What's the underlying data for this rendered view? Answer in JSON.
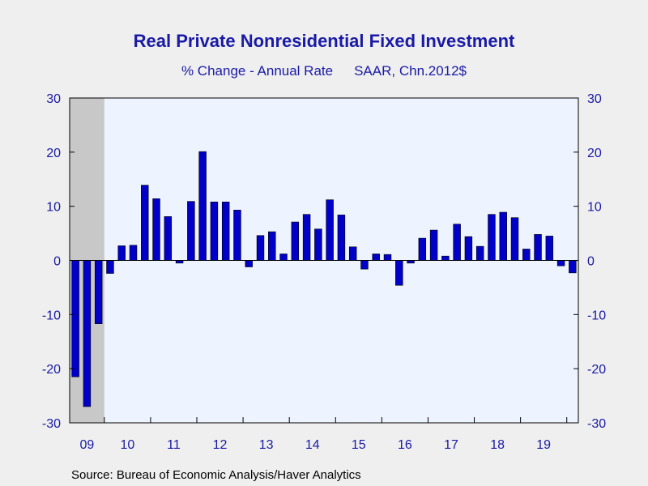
{
  "title": "Real Private Nonresidential Fixed Investment",
  "subtitle_left": "% Change - Annual Rate",
  "subtitle_right": "SAAR, Chn.2012$",
  "source": "Source:  Bureau of Economic Analysis/Haver Analytics",
  "colors": {
    "bar": "#0000c8",
    "bar_edge": "#000000",
    "plot_background": "#eef4ff",
    "recession_shade": "#c8c8c8",
    "axis_text": "#1a1aa6",
    "page_background": "#efefef"
  },
  "chart_data": {
    "type": "bar",
    "recession_shading": {
      "start_index": 0,
      "end_index": 2
    },
    "ylim": [
      -30,
      30
    ],
    "y_ticks": [
      30,
      20,
      10,
      0,
      -10,
      -20,
      -30
    ],
    "x_year_labels": [
      "09",
      "10",
      "11",
      "12",
      "13",
      "14",
      "15",
      "16",
      "17",
      "18",
      "19"
    ],
    "series": [
      {
        "values": [
          -21.5,
          -27.0,
          -11.7,
          -2.4,
          2.7,
          2.8,
          13.9,
          11.4,
          8.1,
          -0.5,
          10.9,
          20.1,
          10.8,
          10.8,
          9.3,
          -1.2,
          4.6,
          5.3,
          1.2,
          7.1,
          8.5,
          5.8,
          11.2,
          8.4,
          2.5,
          -1.6,
          1.2,
          1.1,
          -4.6,
          -0.5,
          4.1,
          5.6,
          0.8,
          6.7,
          4.4,
          2.6,
          8.5,
          8.9,
          7.9,
          2.1,
          4.8,
          4.5,
          -1.0,
          -2.3
        ]
      }
    ]
  }
}
